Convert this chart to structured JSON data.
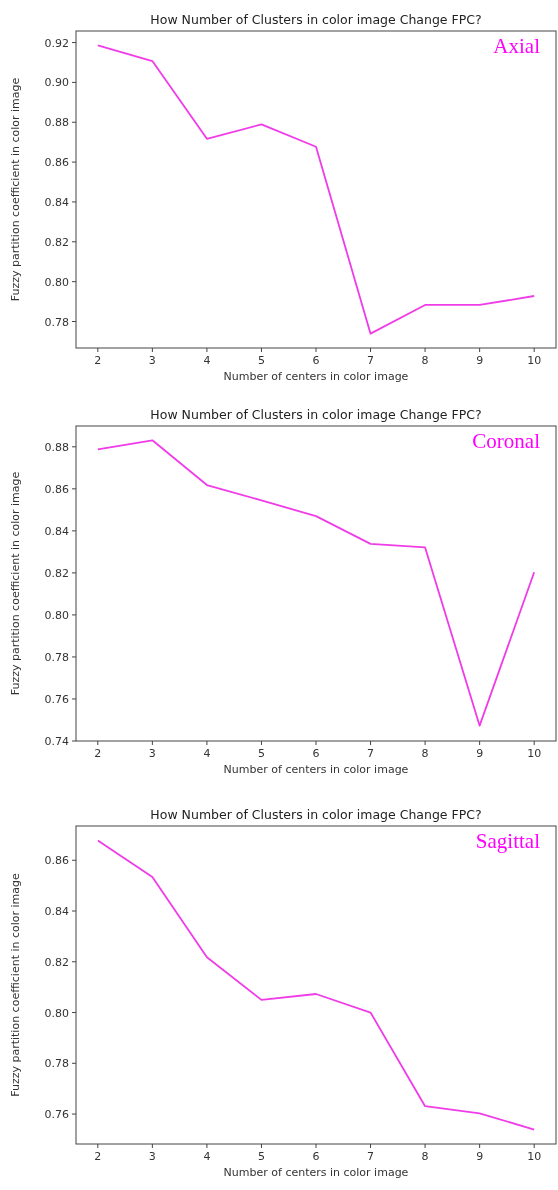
{
  "chart_data": [
    {
      "type": "line",
      "title": "How Number of Clusters in color image Change FPC?",
      "xlabel": "Number of centers in color image",
      "ylabel": "Fuzzy partition coefficient in color image",
      "annotations": [
        "Axial"
      ],
      "x": [
        2,
        3,
        4,
        5,
        6,
        7,
        8,
        9,
        10
      ],
      "xlim": [
        1.6,
        10.4
      ],
      "xticks": [
        2,
        3,
        4,
        5,
        6,
        7,
        8,
        9,
        10
      ],
      "ylim": [
        0.7667,
        0.9258
      ],
      "yticks": [
        {
          "value": 0.78,
          "label": "0.78"
        },
        {
          "value": 0.8,
          "label": "0.80"
        },
        {
          "value": 0.82,
          "label": "0.82"
        },
        {
          "value": 0.84,
          "label": "0.84"
        },
        {
          "value": 0.86,
          "label": "0.86"
        },
        {
          "value": 0.88,
          "label": "0.88"
        },
        {
          "value": 0.9,
          "label": "0.90"
        },
        {
          "value": 0.92,
          "label": "0.92"
        }
      ],
      "series": [
        {
          "color": "#f03ce8",
          "values": [
            0.9186,
            0.9107,
            0.8717,
            0.8789,
            0.8677,
            0.7739,
            0.7883,
            0.7883,
            0.7928
          ]
        }
      ]
    },
    {
      "type": "line",
      "title": "How Number of Clusters in color image Change FPC?",
      "xlabel": "Number of centers in color image",
      "ylabel": "Fuzzy partition coefficient in color image",
      "annotations": [
        "Coronal"
      ],
      "x": [
        2,
        3,
        4,
        5,
        6,
        7,
        8,
        9,
        10
      ],
      "xlim": [
        1.6,
        10.4
      ],
      "xticks": [
        2,
        3,
        4,
        5,
        6,
        7,
        8,
        9,
        10
      ],
      "ylim": [
        0.74,
        0.8899
      ],
      "yticks": [
        {
          "value": 0.74,
          "label": "0.74"
        },
        {
          "value": 0.76,
          "label": "0.76"
        },
        {
          "value": 0.78,
          "label": "0.78"
        },
        {
          "value": 0.8,
          "label": "0.80"
        },
        {
          "value": 0.82,
          "label": "0.82"
        },
        {
          "value": 0.84,
          "label": "0.84"
        },
        {
          "value": 0.86,
          "label": "0.86"
        },
        {
          "value": 0.88,
          "label": "0.88"
        }
      ],
      "series": [
        {
          "color": "#f03ce8",
          "values": [
            0.8788,
            0.8831,
            0.8618,
            0.8545,
            0.847,
            0.8338,
            0.8321,
            0.7473,
            0.8203
          ]
        }
      ]
    },
    {
      "type": "line",
      "title": "How Number of Clusters in color image Change FPC?",
      "xlabel": "Number of centers in color image",
      "ylabel": "Fuzzy partition coefficient in color image",
      "annotations": [
        "Sagittal"
      ],
      "x": [
        2,
        3,
        4,
        5,
        6,
        7,
        8,
        9,
        10
      ],
      "xlim": [
        1.6,
        10.4
      ],
      "xticks": [
        2,
        3,
        4,
        5,
        6,
        7,
        8,
        9,
        10
      ],
      "ylim": [
        0.7482,
        0.8735
      ],
      "yticks": [
        {
          "value": 0.76,
          "label": "0.76"
        },
        {
          "value": 0.78,
          "label": "0.78"
        },
        {
          "value": 0.8,
          "label": "0.80"
        },
        {
          "value": 0.82,
          "label": "0.82"
        },
        {
          "value": 0.84,
          "label": "0.84"
        },
        {
          "value": 0.86,
          "label": "0.86"
        }
      ],
      "series": [
        {
          "color": "#f03ce8",
          "values": [
            0.8678,
            0.8534,
            0.8218,
            0.805,
            0.8073,
            0.8,
            0.7631,
            0.7603,
            0.7539
          ]
        }
      ]
    }
  ]
}
